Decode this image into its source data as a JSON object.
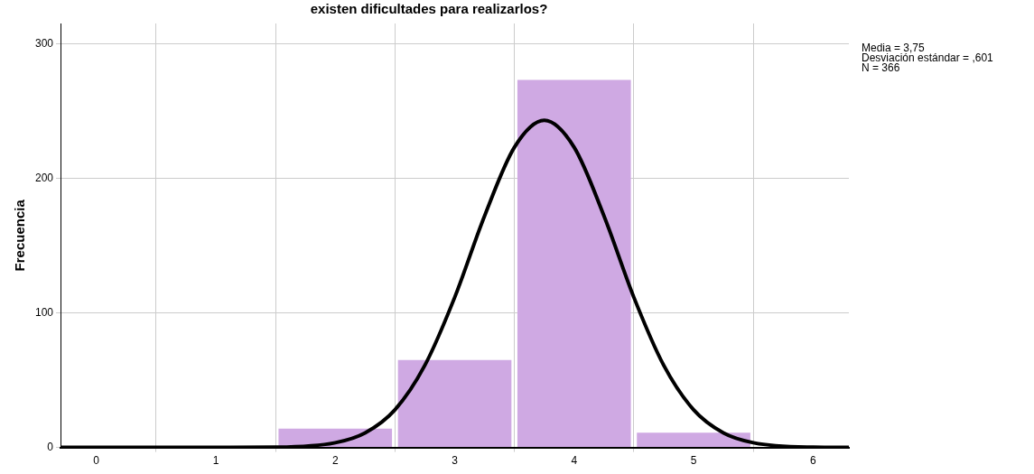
{
  "chart_data": {
    "type": "histogram",
    "title": "existen dificultades para realizarlos?",
    "ylabel": "Frecuencia",
    "bins": [
      1.5,
      2.5,
      3.5,
      4.5,
      5.5
    ],
    "values": [
      14,
      65,
      273,
      11
    ],
    "color": "#cfa9e3",
    "series": [
      {
        "type": "line",
        "color": "#000000",
        "x": [
          -0.3,
          1,
          1.5,
          2,
          2.25,
          2.5,
          2.75,
          3,
          3.25,
          3.5,
          3.75,
          4,
          4.25,
          4.5,
          4.75,
          5,
          5.25,
          5.5,
          6,
          6.3
        ],
        "values": [
          0,
          0,
          0.2,
          3.5,
          10.8,
          28,
          61,
          111.5,
          172,
          223,
          243,
          223,
          172,
          111.5,
          61,
          28,
          10.8,
          3.5,
          0.2,
          0
        ]
      }
    ],
    "xlim": [
      -0.3,
      6.3
    ],
    "xticks": [
      0,
      1,
      2,
      3,
      4,
      5,
      6
    ],
    "ylim": [
      0,
      315
    ],
    "yticks": [
      0,
      100,
      200,
      300
    ],
    "grid": true,
    "legend": false,
    "marker": "none",
    "line_style": "solid",
    "annotations": [
      "Media = 3,75\nDesviación estándar = ,601\nN = 366"
    ]
  }
}
